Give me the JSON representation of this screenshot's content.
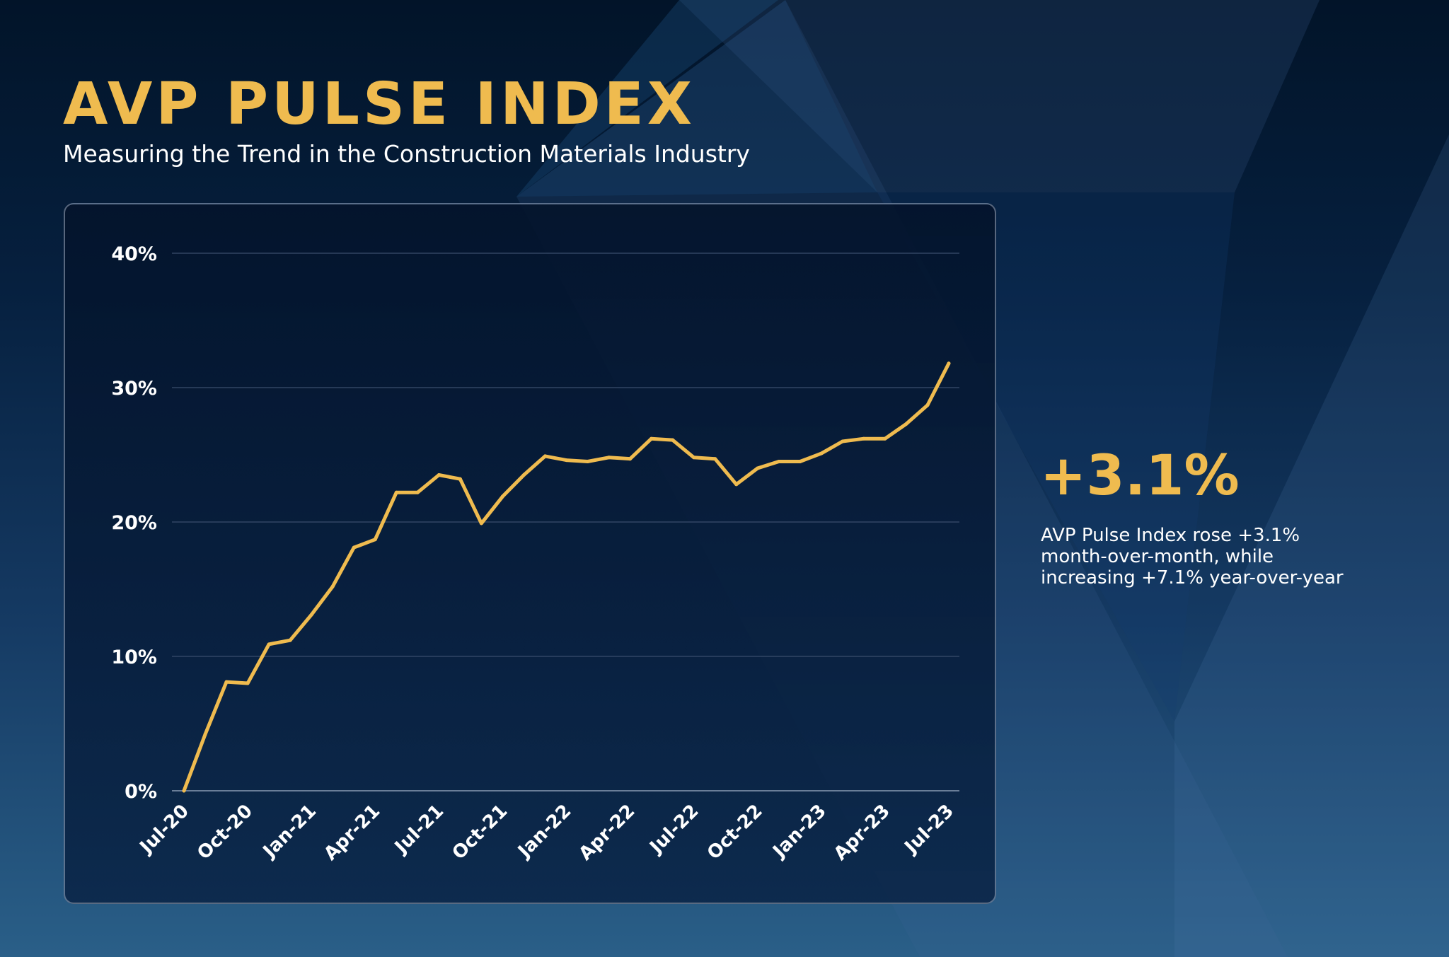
{
  "header": {
    "title": "AVP PULSE INDEX",
    "subtitle": "Measuring the Trend in the Construction Materials Industry"
  },
  "highlight": {
    "value": "+3.1%",
    "description_lines": [
      "AVP Pulse Index rose +3.1%",
      "month-over-month, while",
      "increasing +7.1% year-over-year"
    ]
  },
  "colors": {
    "accent": "#efbb4f",
    "text": "#ffffff",
    "grid": "#3a4e6c"
  },
  "chart_data": {
    "type": "line",
    "title": "AVP PULSE INDEX",
    "xlabel": "",
    "ylabel": "",
    "ylim": [
      0,
      40
    ],
    "yticks": [
      0,
      10,
      20,
      30,
      40
    ],
    "ytick_labels": [
      "0%",
      "10%",
      "20%",
      "30%",
      "40%"
    ],
    "xtick_labels": [
      "Jul-20",
      "Oct-20",
      "Jan-21",
      "Apr-21",
      "Jul-21",
      "Oct-21",
      "Jan-22",
      "Apr-22",
      "Jul-22",
      "Oct-22",
      "Jan-23",
      "Apr-23",
      "Jul-23"
    ],
    "grid": true,
    "x": [
      "Jul-20",
      "Aug-20",
      "Sep-20",
      "Oct-20",
      "Nov-20",
      "Dec-20",
      "Jan-21",
      "Feb-21",
      "Mar-21",
      "Apr-21",
      "May-21",
      "Jun-21",
      "Jul-21",
      "Aug-21",
      "Sep-21",
      "Oct-21",
      "Nov-21",
      "Dec-21",
      "Jan-22",
      "Feb-22",
      "Mar-22",
      "Apr-22",
      "May-22",
      "Jun-22",
      "Jul-22",
      "Aug-22",
      "Sep-22",
      "Oct-22",
      "Nov-22",
      "Dec-22",
      "Jan-23",
      "Feb-23",
      "Mar-23",
      "Apr-23",
      "May-23",
      "Jun-23",
      "Jul-23"
    ],
    "series": [
      {
        "name": "AVP Pulse Index",
        "color": "#efbb4f",
        "values": [
          0,
          4.2,
          8.1,
          8.0,
          10.9,
          11.2,
          13.1,
          15.2,
          18.1,
          18.7,
          22.2,
          22.2,
          23.5,
          23.2,
          19.9,
          21.9,
          23.5,
          24.9,
          24.6,
          24.5,
          24.8,
          24.7,
          26.2,
          26.1,
          24.8,
          24.7,
          22.8,
          24.0,
          24.5,
          24.5,
          25.1,
          26.0,
          26.2,
          26.2,
          27.3,
          28.7,
          31.8
        ]
      }
    ]
  }
}
